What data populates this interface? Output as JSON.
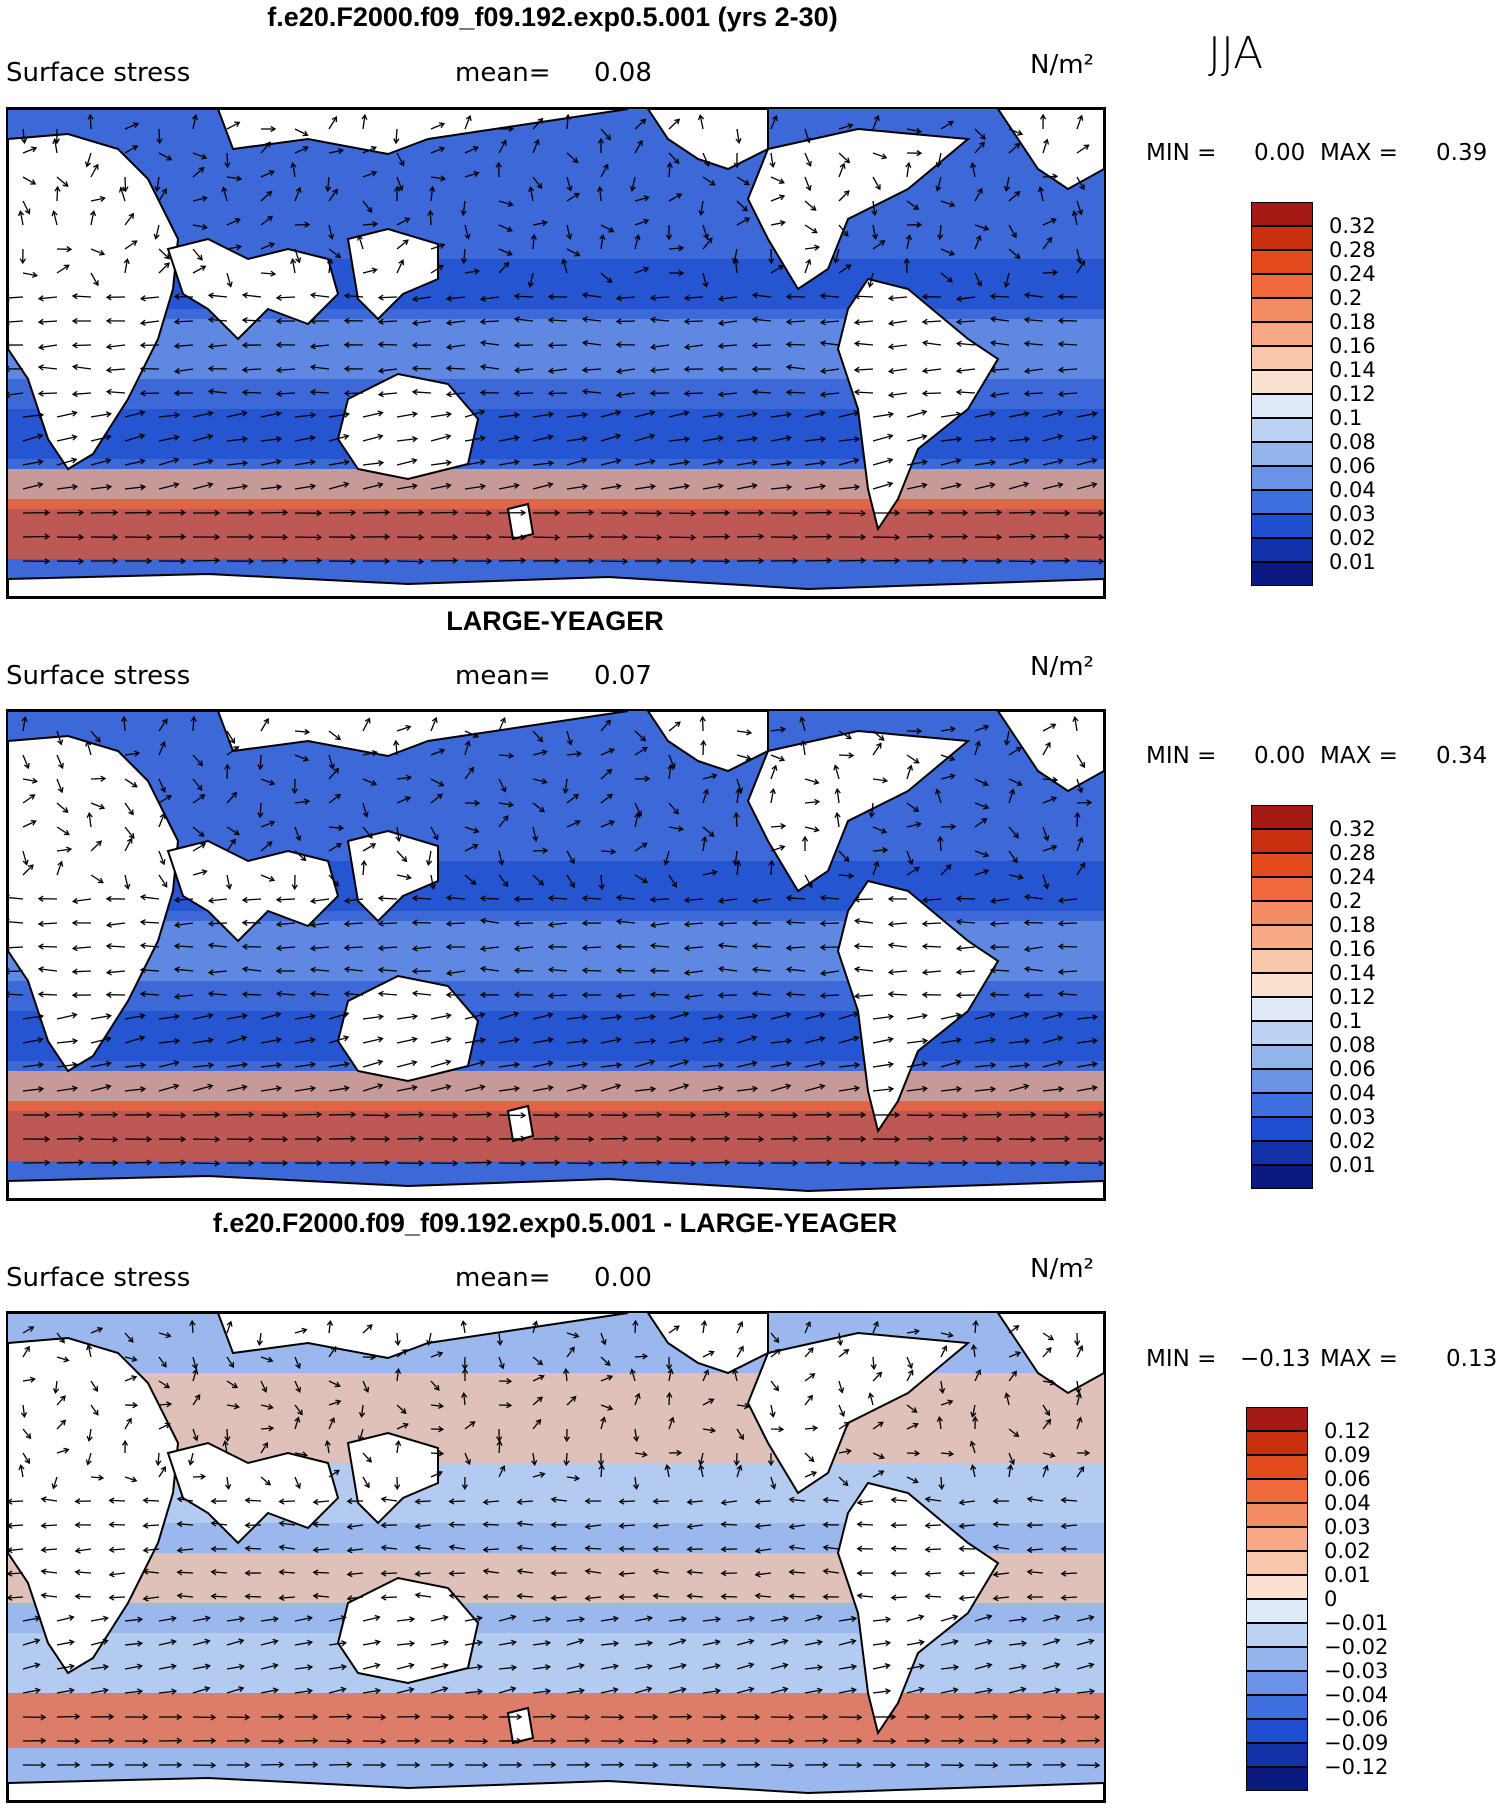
{
  "season": "JJA",
  "units": "N/m²",
  "panels": [
    {
      "title": "f.e20.F2000.f09_f09.192.exp0.5.001 (yrs 2-30)",
      "field": "Surface stress",
      "mean_label": "mean=",
      "mean_value": "0.08",
      "min_label": "MIN =",
      "min_value": "0.00",
      "max_label": "MAX =",
      "max_value": "0.39",
      "colorbar_ticks": [
        "0.32",
        "0.28",
        "0.24",
        "0.2",
        "0.18",
        "0.16",
        "0.14",
        "0.12",
        "0.1",
        "0.08",
        "0.06",
        "0.04",
        "0.03",
        "0.02",
        "0.01"
      ],
      "colorbar_colors": [
        "#a51a15",
        "#c8300f",
        "#e34b1c",
        "#f06a3c",
        "#f48c63",
        "#f6a984",
        "#f8c6aa",
        "#fbe2d0",
        "#dfe9f8",
        "#bcd2f2",
        "#93b5ec",
        "#6a93e6",
        "#3f6fde",
        "#1f4fd0",
        "#1230a8",
        "#0a1a80"
      ],
      "map_colors": {
        "land": "#ffffff",
        "ocean": "#3d68d8",
        "high": "#e8532a",
        "mid": "#f7c0a0"
      }
    },
    {
      "title": "LARGE-YEAGER",
      "field": "Surface stress",
      "mean_label": "mean=",
      "mean_value": "0.07",
      "min_label": "MIN =",
      "min_value": "0.00",
      "max_label": "MAX =",
      "max_value": "0.34",
      "colorbar_ticks": [
        "0.32",
        "0.28",
        "0.24",
        "0.2",
        "0.18",
        "0.16",
        "0.14",
        "0.12",
        "0.1",
        "0.08",
        "0.06",
        "0.04",
        "0.03",
        "0.02",
        "0.01"
      ],
      "colorbar_colors": [
        "#a51a15",
        "#c8300f",
        "#e34b1c",
        "#f06a3c",
        "#f48c63",
        "#f6a984",
        "#f8c6aa",
        "#fbe2d0",
        "#dfe9f8",
        "#bcd2f2",
        "#93b5ec",
        "#6a93e6",
        "#3f6fde",
        "#1f4fd0",
        "#1230a8",
        "#0a1a80"
      ],
      "map_colors": {
        "land": "#ffffff",
        "ocean": "#3d68d8",
        "high": "#e8532a",
        "mid": "#f7c0a0"
      }
    },
    {
      "title": "f.e20.F2000.f09_f09.192.exp0.5.001 - LARGE-YEAGER",
      "field": "Surface stress",
      "mean_label": "mean=",
      "mean_value": "0.00",
      "min_label": "MIN =",
      "min_value": "−0.13",
      "max_label": "MAX =",
      "max_value": "0.13",
      "colorbar_ticks": [
        "0.12",
        "0.09",
        "0.06",
        "0.04",
        "0.03",
        "0.02",
        "0.01",
        "0",
        "−0.01",
        "−0.02",
        "−0.03",
        "−0.04",
        "−0.06",
        "−0.09",
        "−0.12"
      ],
      "colorbar_colors": [
        "#a51a15",
        "#c8300f",
        "#e34b1c",
        "#f06a3c",
        "#f48c63",
        "#f6a984",
        "#f8c6aa",
        "#fbe2d0",
        "#dfe9f8",
        "#bcd2f2",
        "#93b5ec",
        "#6a93e6",
        "#3f6fde",
        "#1f4fd0",
        "#1230a8",
        "#0a1a80"
      ],
      "map_colors": {
        "land": "#ffffff",
        "ocean": "#9ab8ee",
        "high": "#e8532a",
        "mid": "#f6c4a8"
      }
    }
  ]
}
